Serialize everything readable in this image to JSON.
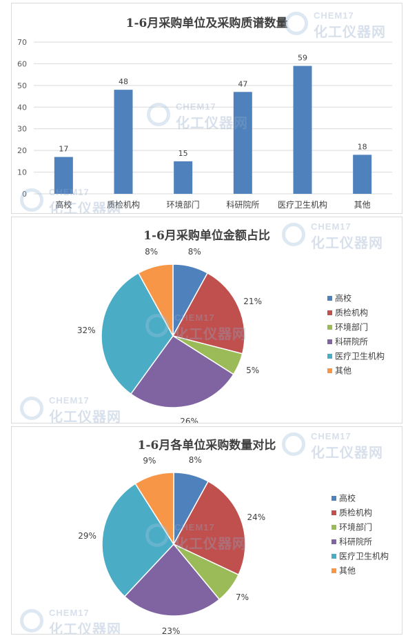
{
  "bar_title": "1-6月采购单位及采购质谱数量",
  "pie1_title": "1-6月采购单位金额占比",
  "pie2_title": "1-6月各单位采购数量对比",
  "watermark": {
    "en": "CHEM17",
    "cn": "化工仪器网"
  },
  "colors": [
    "#4f81bd",
    "#c0504d",
    "#9bbb59",
    "#8064a2",
    "#4bacc6",
    "#f79646"
  ],
  "chart_data": [
    {
      "type": "bar",
      "title": "1-6月采购单位及采购质谱数量",
      "categories": [
        "高校",
        "质检机构",
        "环境部门",
        "科研院所",
        "医疗卫生机构",
        "其他"
      ],
      "values": [
        17,
        48,
        15,
        47,
        59,
        18
      ],
      "ylim": [
        0,
        70
      ],
      "yticks": [
        0,
        10,
        20,
        30,
        40,
        50,
        60,
        70
      ],
      "grid": true,
      "color": "#4f81bd"
    },
    {
      "type": "pie",
      "title": "1-6月采购单位金额占比",
      "labels": [
        "高校",
        "质检机构",
        "环境部门",
        "科研院所",
        "医疗卫生机构",
        "其他"
      ],
      "values": [
        8,
        21,
        5,
        26,
        32,
        8
      ],
      "value_labels": [
        "8%",
        "21%",
        "5%",
        "26%",
        "32%",
        "8%"
      ],
      "legend": "right"
    },
    {
      "type": "pie",
      "title": "1-6月各单位采购数量对比",
      "labels": [
        "高校",
        "质检机构",
        "环境部门",
        "科研院所",
        "医疗卫生机构",
        "其他"
      ],
      "values": [
        8,
        24,
        7,
        23,
        29,
        9
      ],
      "value_labels": [
        "8%",
        "24%",
        "7%",
        "23%",
        "29%",
        "9%"
      ],
      "legend": "right"
    }
  ]
}
